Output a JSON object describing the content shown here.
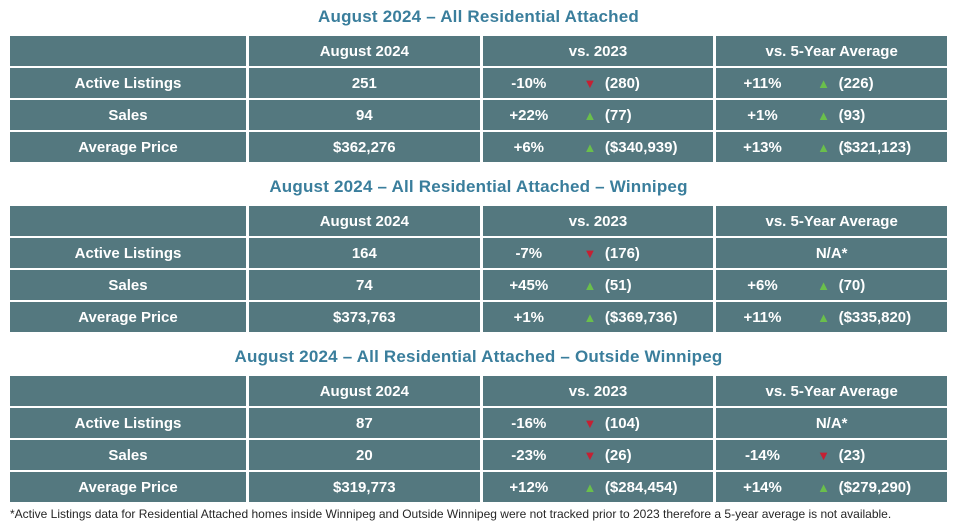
{
  "colors": {
    "title-color": "#3A7E9C",
    "cell-bg": "#54787F",
    "up-color": "#6ABF4B",
    "down-color": "#C42033",
    "footnote-color": "#262626"
  },
  "icons": {
    "up": "▲",
    "down": "▼"
  },
  "columns": [
    "",
    "August 2024",
    "vs. 2023",
    "vs. 5-Year Average"
  ],
  "tables": [
    {
      "title": "August 2024 – All Residential Attached",
      "rows": [
        {
          "label": "Active Listings",
          "current": "251",
          "vs2023": {
            "pct": "-10%",
            "dir": "down",
            "value": "(280)"
          },
          "vs5yr": {
            "pct": "+11%",
            "dir": "up",
            "value": "(226)"
          }
        },
        {
          "label": "Sales",
          "current": "94",
          "vs2023": {
            "pct": "+22%",
            "dir": "up",
            "value": "(77)"
          },
          "vs5yr": {
            "pct": "+1%",
            "dir": "up",
            "value": "(93)"
          }
        },
        {
          "label": "Average Price",
          "current": "$362,276",
          "vs2023": {
            "pct": "+6%",
            "dir": "up",
            "value": "($340,939)"
          },
          "vs5yr": {
            "pct": "+13%",
            "dir": "up",
            "value": "($321,123)"
          }
        }
      ]
    },
    {
      "title": "August 2024 – All Residential Attached – Winnipeg",
      "rows": [
        {
          "label": "Active Listings",
          "current": "164",
          "vs2023": {
            "pct": "-7%",
            "dir": "down",
            "value": "(176)"
          },
          "vs5yr": {
            "na": "N/A*"
          }
        },
        {
          "label": "Sales",
          "current": "74",
          "vs2023": {
            "pct": "+45%",
            "dir": "up",
            "value": "(51)"
          },
          "vs5yr": {
            "pct": "+6%",
            "dir": "up",
            "value": "(70)"
          }
        },
        {
          "label": "Average Price",
          "current": "$373,763",
          "vs2023": {
            "pct": "+1%",
            "dir": "up",
            "value": "($369,736)"
          },
          "vs5yr": {
            "pct": "+11%",
            "dir": "up",
            "value": "($335,820)"
          }
        }
      ]
    },
    {
      "title": "August 2024 – All Residential Attached – Outside Winnipeg",
      "rows": [
        {
          "label": "Active Listings",
          "current": "87",
          "vs2023": {
            "pct": "-16%",
            "dir": "down",
            "value": "(104)"
          },
          "vs5yr": {
            "na": "N/A*"
          }
        },
        {
          "label": "Sales",
          "current": "20",
          "vs2023": {
            "pct": "-23%",
            "dir": "down",
            "value": "(26)"
          },
          "vs5yr": {
            "pct": "-14%",
            "dir": "down",
            "value": "(23)"
          }
        },
        {
          "label": "Average Price",
          "current": "$319,773",
          "vs2023": {
            "pct": "+12%",
            "dir": "up",
            "value": "($284,454)"
          },
          "vs5yr": {
            "pct": "+14%",
            "dir": "up",
            "value": "($279,290)"
          }
        }
      ]
    }
  ],
  "footnote": "*Active Listings data for Residential Attached homes inside Winnipeg and Outside Winnipeg were not tracked prior to 2023 therefore a 5-year average is not available."
}
